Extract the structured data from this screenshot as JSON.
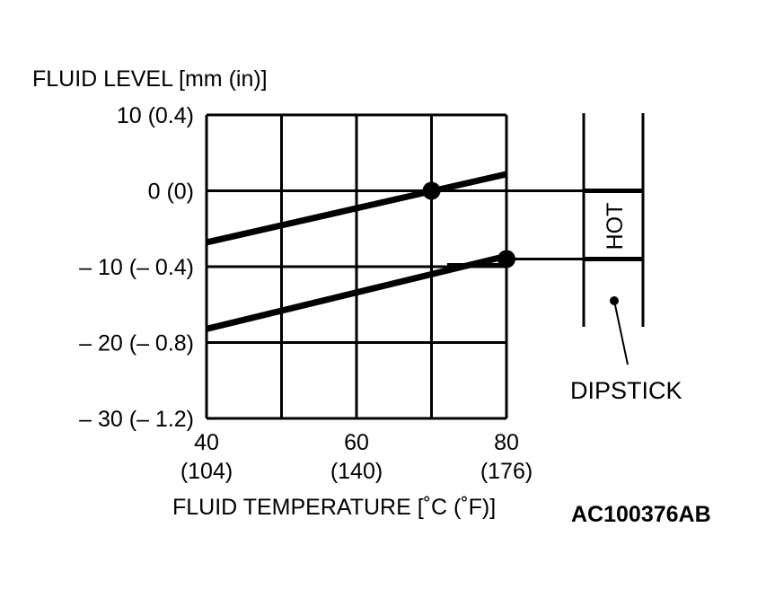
{
  "chart_data": {
    "type": "line",
    "ylabel": "FLUID LEVEL [mm (in)]",
    "xlabel": "FLUID TEMPERATURE [˚C (˚F)]",
    "x_ticks": [
      {
        "value": 40,
        "label": "40",
        "sublabel": "(104)"
      },
      {
        "value": 60,
        "label": "60",
        "sublabel": "(140)"
      },
      {
        "value": 80,
        "label": "80",
        "sublabel": "(176)"
      }
    ],
    "y_ticks": [
      {
        "value": 10,
        "label": "10 (0.4)"
      },
      {
        "value": 0,
        "label": "0 (0)"
      },
      {
        "value": -10,
        "label": "– 10 (– 0.4)"
      },
      {
        "value": -20,
        "label": "– 20 (– 0.8)"
      },
      {
        "value": -30,
        "label": "– 30 (– 1.2)"
      }
    ],
    "xlim": [
      40,
      80
    ],
    "ylim": [
      -30,
      10
    ],
    "x_gridlines": [
      40,
      50,
      60,
      70,
      80
    ],
    "y_gridlines": [
      -30,
      -20,
      -10,
      0,
      10
    ],
    "grid": true,
    "series": [
      {
        "x": [
          40,
          80
        ],
        "y": [
          -6.8,
          2.2
        ]
      },
      {
        "x": [
          40,
          80
        ],
        "y": [
          -18.2,
          -8.6
        ]
      }
    ],
    "markers": [
      {
        "x": 70,
        "y": 0
      },
      {
        "x": 80,
        "y": -9
      }
    ],
    "color": "#000000"
  },
  "dipstick": {
    "label": "DIPSTICK",
    "zone_label": "HOT",
    "zone_top": 0,
    "zone_bottom": -9
  },
  "figure_code": "AC100376AB"
}
